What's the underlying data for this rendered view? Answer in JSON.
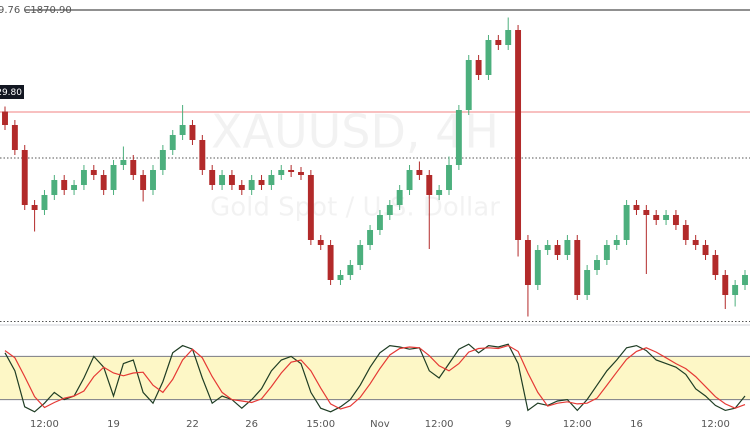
{
  "chart_data": [
    {
      "type": "candlestick",
      "annotations": [
        "9.76 C1870.90",
        "29.80"
      ],
      "watermark": [
        "XAUUSD, 4H",
        "Gold Spot / U.S. Dollar"
      ],
      "categories": [
        null,
        null,
        null,
        null,
        "12:00",
        null,
        null,
        null,
        null,
        null,
        null,
        "19",
        null,
        null,
        null,
        null,
        null,
        null,
        null,
        "22",
        null,
        null,
        null,
        null,
        null,
        "26",
        null,
        null,
        null,
        null,
        null,
        null,
        "15:00",
        null,
        null,
        null,
        null,
        null,
        "Nov",
        null,
        null,
        null,
        null,
        null,
        "12:00",
        null,
        null,
        null,
        null,
        null,
        null,
        "9",
        null,
        null,
        null,
        null,
        null,
        null,
        "12:00",
        null,
        null,
        null,
        null,
        null,
        "16",
        null,
        null,
        null,
        null,
        null,
        null,
        null,
        "12:00",
        null,
        null,
        null
      ],
      "open": [
        1830,
        1824.6,
        1814.6,
        1792.6,
        1790.6,
        1796.6,
        1802.6,
        1798.6,
        1800.6,
        1806.6,
        1804.6,
        1798.6,
        1808.6,
        1810.6,
        1804.6,
        1798.6,
        1806.6,
        1814.6,
        1820.6,
        1824.6,
        1818.6,
        1806.6,
        1800.6,
        1804.6,
        1800.6,
        1798.6,
        1802.6,
        1800.6,
        1804.6,
        1806.6,
        1805.8,
        1804.6,
        1778.6,
        1776.6,
        1762.6,
        1764.6,
        1768.6,
        1776.6,
        1782.6,
        1788.6,
        1792.6,
        1798.6,
        1806.6,
        1804.6,
        1796.6,
        1798.6,
        1808.6,
        1830.6,
        1850.6,
        1844.6,
        1858.6,
        1856.6,
        1862.6,
        1778.6,
        1760.6,
        1774.6,
        1776.6,
        1772.6,
        1778.6,
        1756.6,
        1766.6,
        1770.6,
        1776.6,
        1778.6,
        1792.6,
        1790.6,
        1788.6,
        1786.6,
        1788.6,
        1784.6,
        1778.6,
        1776.6,
        1772.6,
        1764.6,
        1756.6,
        1760.6
      ],
      "high": [
        1832,
        1826.6,
        1816.6,
        1794.6,
        1798.6,
        1804.6,
        1804.6,
        1802.6,
        1808.6,
        1808.6,
        1806.6,
        1810.6,
        1816,
        1812.6,
        1806.6,
        1808.6,
        1816.6,
        1822.6,
        1832.6,
        1826.6,
        1820.6,
        1808.6,
        1806.6,
        1806.6,
        1802.6,
        1804.6,
        1804.6,
        1806.6,
        1808.6,
        1808.6,
        1807.8,
        1806.6,
        1780.6,
        1778.6,
        1766.6,
        1770.6,
        1778.6,
        1784.6,
        1790.6,
        1794.6,
        1800.6,
        1808.6,
        1810,
        1806.6,
        1800.6,
        1812,
        1832.6,
        1852.6,
        1852.6,
        1860.6,
        1860.6,
        1867.6,
        1864.6,
        1780.6,
        1776.6,
        1778.6,
        1778.6,
        1780.6,
        1780.6,
        1768.6,
        1772.6,
        1778.6,
        1780.6,
        1794.6,
        1794.6,
        1792.6,
        1790.6,
        1790.6,
        1790.6,
        1786.6,
        1780.6,
        1778.6,
        1774.6,
        1766.6,
        1762.6,
        1766.6
      ],
      "low": [
        1822.6,
        1812.6,
        1790.6,
        1782,
        1788.6,
        1794.6,
        1796.6,
        1796.6,
        1798.6,
        1802.6,
        1796.6,
        1796.6,
        1806.6,
        1802.6,
        1794,
        1796.6,
        1804.6,
        1812.6,
        1818.6,
        1816.6,
        1804.6,
        1798.6,
        1798.6,
        1798.6,
        1796.6,
        1796.6,
        1798.6,
        1798.6,
        1802.6,
        1803.8,
        1802.6,
        1776.6,
        1774.6,
        1760.6,
        1760.6,
        1762.6,
        1766.6,
        1774.6,
        1780.6,
        1786.6,
        1790.6,
        1796.6,
        1802.6,
        1775,
        1794.6,
        1796.6,
        1806.6,
        1828.6,
        1842.6,
        1842.6,
        1854.6,
        1854.6,
        1772,
        1748,
        1758.6,
        1772.6,
        1770.6,
        1770.6,
        1754.6,
        1754.6,
        1764.6,
        1768.6,
        1774.6,
        1776.6,
        1788.6,
        1765,
        1784.6,
        1784.6,
        1782.6,
        1776.6,
        1774.6,
        1770.6,
        1762.6,
        1751,
        1752,
        1758.6
      ],
      "close": [
        1824.6,
        1814.6,
        1792.6,
        1790.6,
        1796.6,
        1802.6,
        1798.6,
        1800.6,
        1806.6,
        1804.6,
        1798.6,
        1808.6,
        1810.6,
        1804.6,
        1798.6,
        1806.6,
        1814.6,
        1820.6,
        1824.6,
        1818.6,
        1806.6,
        1800.6,
        1804.6,
        1800.6,
        1798.6,
        1802.6,
        1800.6,
        1804.6,
        1806.6,
        1805.8,
        1804.6,
        1778.6,
        1776.6,
        1762.6,
        1764.6,
        1768.6,
        1776.6,
        1782.6,
        1788.6,
        1792.6,
        1798.6,
        1806.6,
        1804.6,
        1796.6,
        1798.6,
        1808.6,
        1830.6,
        1850.6,
        1844.6,
        1858.6,
        1856.6,
        1862.6,
        1778.6,
        1760.6,
        1774.6,
        1776.6,
        1772.6,
        1778.6,
        1756.6,
        1766.6,
        1770.6,
        1776.6,
        1778.6,
        1792.6,
        1790.6,
        1788.6,
        1786.6,
        1788.6,
        1784.6,
        1778.6,
        1776.6,
        1772.6,
        1764.6,
        1756.6,
        1760.6,
        1764.6
      ],
      "up_color": "#4caf7d",
      "down_color": "#b22a2a",
      "ylim": [
        1745.4,
        1874.6
      ],
      "hlines": [
        {
          "value": 1829.8,
          "color": "#f08080",
          "dash": false
        },
        {
          "value": 1811.4,
          "color": "#555555",
          "dash": true
        },
        {
          "value": 1746,
          "color": "#555555",
          "dash": true
        }
      ]
    },
    {
      "type": "line",
      "ylim": [
        0,
        100
      ],
      "band": [
        20,
        80
      ],
      "band_color": "#fdf7c6",
      "series": [
        {
          "color": "#1f3d24",
          "values": [
            85,
            60,
            10,
            3,
            15,
            30,
            20,
            25,
            50,
            80,
            65,
            25,
            70,
            75,
            30,
            15,
            45,
            85,
            95,
            90,
            50,
            15,
            25,
            20,
            8,
            20,
            35,
            60,
            75,
            80,
            70,
            30,
            8,
            3,
            10,
            20,
            40,
            65,
            85,
            95,
            93,
            90,
            92,
            60,
            50,
            70,
            90,
            97,
            85,
            95,
            93,
            97,
            70,
            5,
            15,
            12,
            18,
            20,
            5,
            20,
            40,
            60,
            75,
            92,
            95,
            88,
            75,
            70,
            65,
            55,
            35,
            25,
            12,
            5,
            8,
            25
          ]
        },
        {
          "color": "#e53935",
          "values": [
            88,
            78,
            52,
            24,
            9,
            16,
            22,
            25,
            32,
            52,
            65,
            57,
            53,
            57,
            58,
            40,
            30,
            48,
            75,
            90,
            78,
            52,
            30,
            20,
            18,
            16,
            21,
            38,
            57,
            72,
            75,
            60,
            36,
            14,
            7,
            11,
            23,
            42,
            63,
            82,
            91,
            93,
            92,
            81,
            67,
            60,
            70,
            86,
            91,
            92,
            91,
            95,
            87,
            57,
            30,
            11,
            15,
            17,
            14,
            15,
            22,
            40,
            58,
            76,
            87,
            92,
            86,
            78,
            70,
            63,
            52,
            38,
            24,
            14,
            8,
            13
          ]
        }
      ]
    }
  ]
}
